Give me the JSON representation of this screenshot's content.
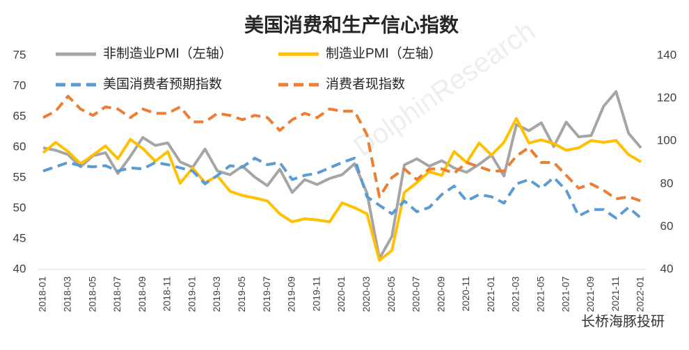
{
  "chart_data": {
    "type": "line",
    "title": "美国消费和生产信心指数",
    "watermark": "DolphinResearch",
    "footer": "长桥海豚投研",
    "categories": [
      "2018-01",
      null,
      "2018-03",
      null,
      "2018-05",
      null,
      "2018-07",
      null,
      "2018-09",
      null,
      "2018-11",
      null,
      "2019-01",
      null,
      "2019-03",
      null,
      "2019-05",
      null,
      "2019-07",
      null,
      "2019-09",
      null,
      "2019-11",
      null,
      "2020-01",
      null,
      "2020-03",
      null,
      "2020-05",
      null,
      "2020-07",
      null,
      "2020-09",
      null,
      "2020-11",
      null,
      "2021-01",
      null,
      "2021-03",
      null,
      "2021-05",
      null,
      "2021-07",
      null,
      "2021-09",
      null,
      "2021-11",
      null,
      "2022-01"
    ],
    "ylim": [
      40,
      75
    ],
    "yticks": [
      40,
      45,
      50,
      55,
      60,
      65,
      70,
      75
    ],
    "y2lim": [
      40,
      140
    ],
    "y2ticks": [
      40,
      60,
      80,
      100,
      120,
      140
    ],
    "series": [
      {
        "name": "非制造业PMI（左轴）",
        "color": "#a5a5a5",
        "dash": false,
        "axis": "y",
        "values": [
          59.9,
          59.5,
          58.8,
          56.8,
          58.6,
          59.1,
          55.7,
          58.5,
          61.6,
          60.3,
          60.7,
          57.6,
          56.7,
          59.7,
          56.1,
          55.5,
          56.9,
          55.1,
          53.7,
          56.4,
          52.6,
          54.7,
          53.9,
          54.9,
          55.5,
          57.3,
          52.5,
          41.8,
          45.4,
          57.1,
          58.1,
          56.9,
          57.8,
          56.6,
          55.9,
          57.2,
          58.7,
          55.3,
          63.7,
          62.7,
          64.0,
          60.1,
          64.1,
          61.7,
          61.9,
          66.7,
          69.1,
          62.3,
          59.9
        ]
      },
      {
        "name": "制造业PMI（左轴）",
        "color": "#ffc000",
        "dash": false,
        "axis": "y",
        "values": [
          59.1,
          60.8,
          59.3,
          57.3,
          58.7,
          60.2,
          58.1,
          61.3,
          59.8,
          57.7,
          59.3,
          54.1,
          56.6,
          54.2,
          55.3,
          52.8,
          52.1,
          51.7,
          51.2,
          49.1,
          47.8,
          48.3,
          48.1,
          47.8,
          50.9,
          50.1,
          49.1,
          41.5,
          43.1,
          52.6,
          54.2,
          56.0,
          55.4,
          59.3,
          57.5,
          60.7,
          58.7,
          60.8,
          64.7,
          60.7,
          61.2,
          60.6,
          59.5,
          59.9,
          61.1,
          60.8,
          61.1,
          58.8,
          57.6
        ]
      },
      {
        "name": "美国消费者预期指数",
        "color": "#5b9bd5",
        "dash": true,
        "axis": "y2",
        "values": [
          86,
          88,
          90,
          88.5,
          88,
          88.5,
          86,
          87.5,
          87,
          90,
          89,
          87.5,
          86,
          80,
          84,
          88.5,
          87.8,
          92,
          89,
          90,
          82,
          84,
          85,
          87.5,
          90,
          92,
          74,
          70,
          66,
          72,
          67,
          69,
          75,
          79,
          72,
          75,
          74,
          71,
          80,
          82,
          78,
          83,
          77,
          65,
          68,
          68,
          64,
          69,
          64
        ]
      },
      {
        "name": "消费者现指数",
        "color": "#ed7d31",
        "dash": true,
        "axis": "y2",
        "values": [
          111,
          114,
          121,
          115,
          112,
          116,
          115,
          111,
          115,
          113,
          113,
          116,
          109,
          109,
          113,
          112,
          110,
          112,
          111,
          105,
          110,
          113,
          111,
          115,
          114,
          114,
          103,
          74,
          83,
          87,
          82,
          87,
          87,
          85,
          90,
          88,
          86,
          86,
          93,
          97,
          90,
          90,
          84,
          78,
          80,
          77,
          73,
          74,
          72
        ]
      }
    ]
  }
}
